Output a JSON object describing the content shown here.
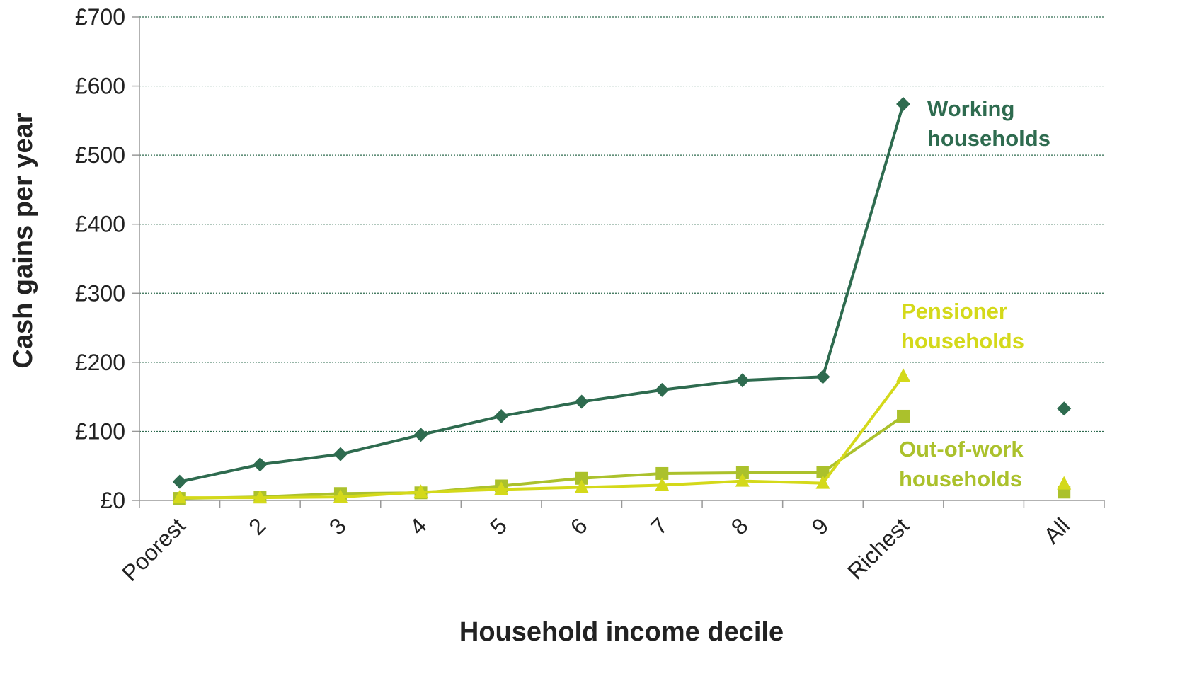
{
  "chart_data": {
    "type": "line",
    "xlabel": "Household income decile",
    "ylabel": "Cash gains per year",
    "categories": [
      "Poorest",
      "2",
      "3",
      "4",
      "5",
      "6",
      "7",
      "8",
      "9",
      "Richest",
      null,
      "All"
    ],
    "series": [
      {
        "name": "Working households",
        "color": "#2e6b4f",
        "marker": "diamond",
        "values": [
          27,
          52,
          67,
          95,
          122,
          143,
          160,
          174,
          179,
          574,
          null,
          133
        ]
      },
      {
        "name": "Pensioner households",
        "color": "#d4d91a",
        "marker": "triangle",
        "values": [
          4,
          4,
          5,
          12,
          16,
          19,
          22,
          28,
          25,
          180,
          null,
          24
        ]
      },
      {
        "name": "Out-of-work households",
        "color": "#abc12c",
        "marker": "square",
        "values": [
          3,
          5,
          10,
          11,
          21,
          32,
          39,
          40,
          41,
          122,
          null,
          12
        ]
      }
    ],
    "ylim": [
      0,
      700
    ],
    "yticks": [
      {
        "value": 0,
        "label": "£0"
      },
      {
        "value": 100,
        "label": "£100"
      },
      {
        "value": 200,
        "label": "£200"
      },
      {
        "value": 300,
        "label": "£300"
      },
      {
        "value": 400,
        "label": "£400"
      },
      {
        "value": 500,
        "label": "£500"
      },
      {
        "value": 600,
        "label": "£600"
      },
      {
        "value": 700,
        "label": "£700"
      }
    ],
    "grid": true
  }
}
